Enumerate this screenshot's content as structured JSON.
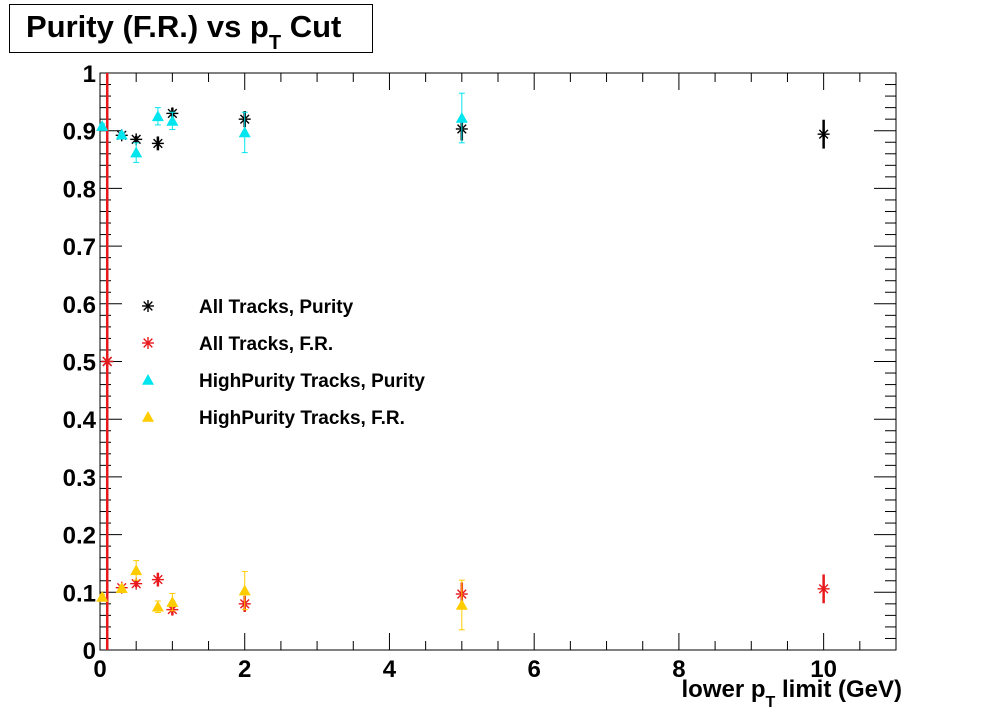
{
  "chart_data": {
    "type": "scatter",
    "title_main": "Purity (F.R.) vs p",
    "title_sub": "T",
    "title_tail": " Cut",
    "xlabel_main": "lower p",
    "xlabel_sub": "T",
    "xlabel_tail": " limit (GeV)",
    "xlim": [
      0,
      11
    ],
    "ylim": [
      0,
      1
    ],
    "x_ticks": [
      "0",
      "2",
      "4",
      "6",
      "8",
      "10"
    ],
    "y_ticks": [
      "0",
      "0.1",
      "0.2",
      "0.3",
      "0.4",
      "0.5",
      "0.6",
      "0.7",
      "0.8",
      "0.9",
      "1"
    ],
    "legend_position": "center-left",
    "series": [
      {
        "name": "All Tracks, Purity",
        "marker": "star",
        "color": "#000000",
        "points": [
          {
            "x": 0.1,
            "y": 0.5,
            "err": 0.5
          },
          {
            "x": 0.3,
            "y": 0.892,
            "err": 0.004
          },
          {
            "x": 0.5,
            "y": 0.885,
            "err": 0.006
          },
          {
            "x": 0.8,
            "y": 0.878,
            "err": 0.012
          },
          {
            "x": 1.0,
            "y": 0.93,
            "err": 0.01
          },
          {
            "x": 2.0,
            "y": 0.92,
            "err": 0.014
          },
          {
            "x": 5.0,
            "y": 0.903,
            "err": 0.02
          },
          {
            "x": 10.0,
            "y": 0.894,
            "err": 0.025
          }
        ]
      },
      {
        "name": "All Tracks, F.R.",
        "marker": "star",
        "color": "#e8191d",
        "points": [
          {
            "x": 0.1,
            "y": 0.5,
            "err": 0.5
          },
          {
            "x": 0.3,
            "y": 0.108,
            "err": 0.004
          },
          {
            "x": 0.5,
            "y": 0.115,
            "err": 0.006
          },
          {
            "x": 0.8,
            "y": 0.122,
            "err": 0.012
          },
          {
            "x": 1.0,
            "y": 0.07,
            "err": 0.01
          },
          {
            "x": 2.0,
            "y": 0.08,
            "err": 0.014
          },
          {
            "x": 5.0,
            "y": 0.097,
            "err": 0.02
          },
          {
            "x": 10.0,
            "y": 0.106,
            "err": 0.025
          }
        ]
      },
      {
        "name": "HighPurity Tracks, Purity",
        "marker": "triangle",
        "color": "#00e5ee",
        "points": [
          {
            "x": 0.03,
            "y": 0.908,
            "err": 0.004
          },
          {
            "x": 0.3,
            "y": 0.893,
            "err": 0.004
          },
          {
            "x": 0.5,
            "y": 0.862,
            "err": 0.017
          },
          {
            "x": 0.8,
            "y": 0.925,
            "err": 0.015
          },
          {
            "x": 1.0,
            "y": 0.917,
            "err": 0.015
          },
          {
            "x": 2.0,
            "y": 0.897,
            "err": 0.035
          },
          {
            "x": 5.0,
            "y": 0.922,
            "err": 0.043
          }
        ]
      },
      {
        "name": "HighPurity Tracks, F.R.",
        "marker": "triangle",
        "color": "#ffcc00",
        "points": [
          {
            "x": 0.03,
            "y": 0.092,
            "err": 0.004
          },
          {
            "x": 0.3,
            "y": 0.107,
            "err": 0.004
          },
          {
            "x": 0.5,
            "y": 0.138,
            "err": 0.017
          },
          {
            "x": 0.8,
            "y": 0.075,
            "err": 0.01
          },
          {
            "x": 1.0,
            "y": 0.083,
            "err": 0.015
          },
          {
            "x": 2.0,
            "y": 0.103,
            "err": 0.033
          },
          {
            "x": 5.0,
            "y": 0.078,
            "err": 0.043
          }
        ]
      }
    ]
  }
}
